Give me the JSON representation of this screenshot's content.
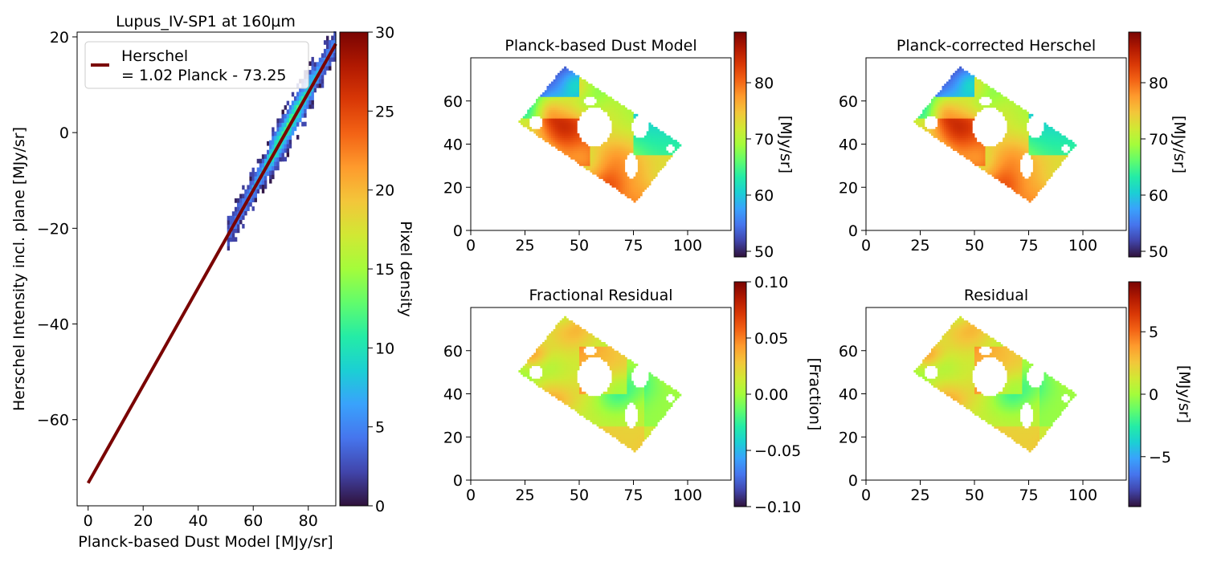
{
  "colormap_stops": [
    "#30123b",
    "#4145ab",
    "#4675ed",
    "#39a2fc",
    "#1bcfd4",
    "#24eca6",
    "#61fc6c",
    "#a4fc3b",
    "#d1e834",
    "#f3c63a",
    "#fe9b2d",
    "#f36315",
    "#d93806",
    "#b11901",
    "#7a0402"
  ],
  "chart_data": [
    {
      "id": "scatter",
      "type": "heatmap",
      "title": "Lupus_IV-SP1 at 160µm",
      "xlabel": "Planck-based Dust Model [MJy/sr]",
      "ylabel": "Herschel Intensity incl. plane [MJy/sr]",
      "xlim": [
        -4,
        90
      ],
      "ylim": [
        -78,
        21
      ],
      "xticks": [
        0,
        20,
        40,
        60,
        80
      ],
      "yticks": [
        20,
        0,
        -20,
        -40,
        -60
      ],
      "density_ridge": {
        "x0": 50.5,
        "x1": 89.5,
        "halfwidth_y": 2.6
      },
      "fit_line": {
        "slope": 1.02,
        "intercept": -73.25,
        "x_range": [
          0,
          90
        ],
        "color": "#7a0402"
      },
      "legend": {
        "position": "top-left",
        "line1": "Herschel",
        "line2": "= 1.02 Planck - 73.25"
      },
      "colorbar": {
        "label": "Pixel density",
        "range": [
          0,
          30
        ],
        "ticks": [
          0,
          5,
          10,
          15,
          20,
          25,
          30
        ]
      }
    },
    {
      "id": "dust",
      "type": "heatmap",
      "title": "Planck-based Dust Model",
      "map_kind": "value",
      "seed": 3,
      "xlim": [
        0,
        120
      ],
      "ylim": [
        0,
        80
      ],
      "xticks": [
        0,
        25,
        50,
        75,
        100
      ],
      "yticks": [
        0,
        20,
        40,
        60
      ],
      "colorbar": {
        "label": "[MJy/sr]",
        "range": [
          49,
          89
        ],
        "ticks": [
          50,
          60,
          70,
          80
        ]
      }
    },
    {
      "id": "corrected",
      "type": "heatmap",
      "title": "Planck-corrected Herschel",
      "map_kind": "value",
      "seed": 3,
      "xlim": [
        0,
        120
      ],
      "ylim": [
        0,
        80
      ],
      "xticks": [
        0,
        25,
        50,
        75,
        100
      ],
      "yticks": [
        0,
        20,
        40,
        60
      ],
      "colorbar": {
        "label": "[MJy/sr]",
        "range": [
          49,
          89
        ],
        "ticks": [
          50,
          60,
          70,
          80
        ]
      }
    },
    {
      "id": "fracres",
      "type": "heatmap",
      "title": "Fractional Residual",
      "map_kind": "residual",
      "seed": 11,
      "xlim": [
        0,
        120
      ],
      "ylim": [
        0,
        80
      ],
      "xticks": [
        0,
        25,
        50,
        75,
        100
      ],
      "yticks": [
        0,
        20,
        40,
        60
      ],
      "colorbar": {
        "label": "[Fraction]",
        "range": [
          -0.1,
          0.1
        ],
        "ticks": [
          -0.1,
          -0.05,
          0.0,
          0.05,
          0.1
        ],
        "tick_labels": [
          "−0.10",
          "−0.05",
          "0.00",
          "0.05",
          "0.10"
        ]
      }
    },
    {
      "id": "residual",
      "type": "heatmap",
      "title": "Residual",
      "map_kind": "residual",
      "seed": 11,
      "xlim": [
        0,
        120
      ],
      "ylim": [
        0,
        80
      ],
      "xticks": [
        0,
        25,
        50,
        75,
        100
      ],
      "yticks": [
        0,
        20,
        40,
        60
      ],
      "colorbar": {
        "label": "[MJy/sr]",
        "range": [
          -9,
          9
        ],
        "ticks": [
          -5,
          0,
          5
        ],
        "tick_labels": [
          "−5",
          "0",
          "5"
        ]
      }
    }
  ]
}
